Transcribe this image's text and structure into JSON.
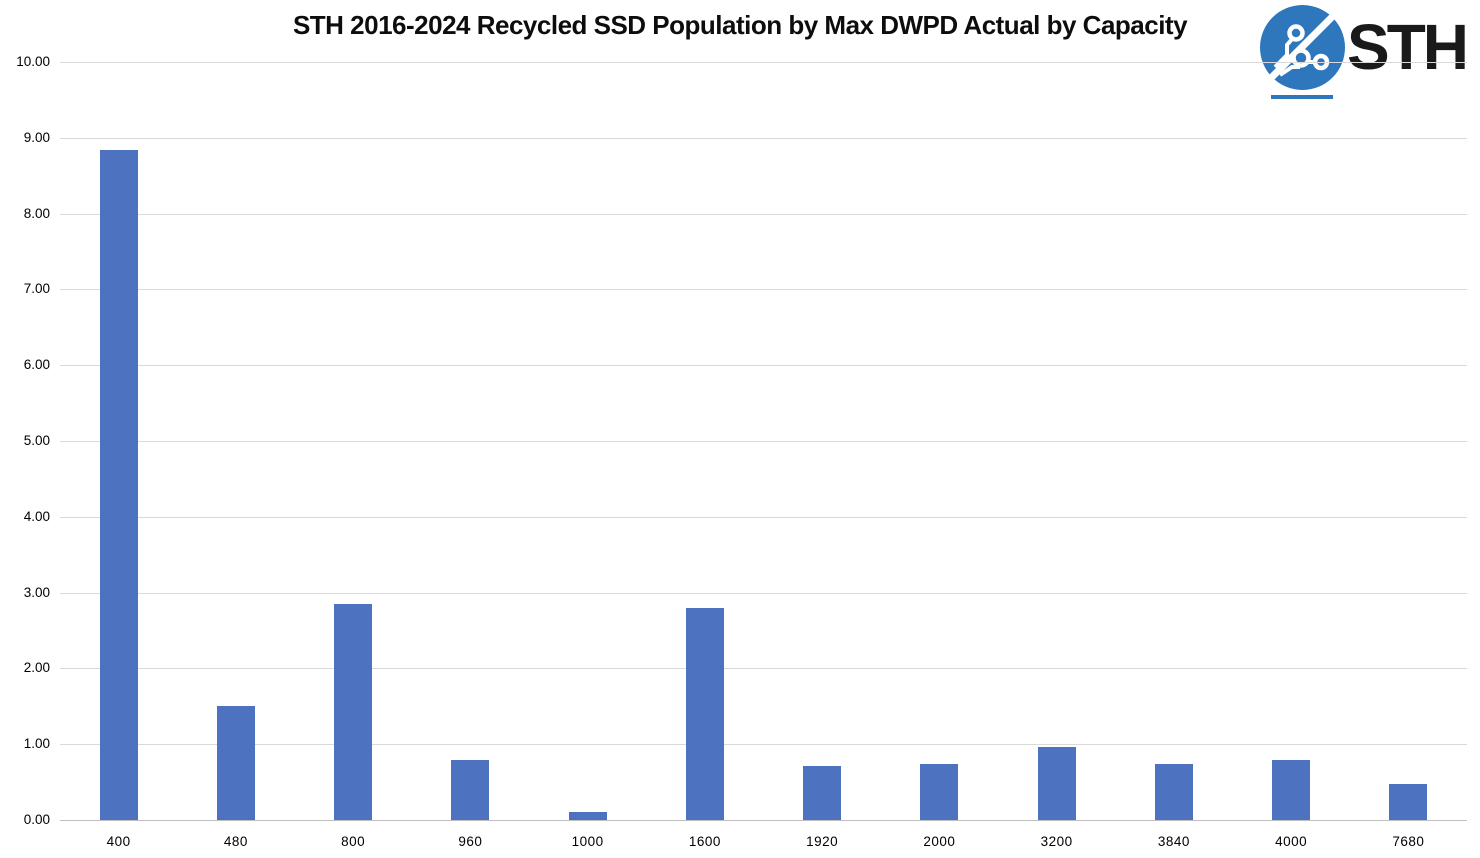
{
  "logo": {
    "text": "STH",
    "icon": "sth-circuit-globe",
    "circle_color": "#2E77BD",
    "text_color": "#1a1a1a"
  },
  "chart_data": {
    "type": "bar",
    "title": "STH 2016-2024 Recycled SSD Population by Max DWPD Actual by Capacity",
    "categories": [
      "400",
      "480",
      "800",
      "960",
      "1000",
      "1600",
      "1920",
      "2000",
      "3200",
      "3840",
      "4000",
      "7680"
    ],
    "values": [
      8.84,
      1.5,
      2.85,
      0.79,
      0.11,
      2.8,
      0.71,
      0.74,
      0.96,
      0.74,
      0.79,
      0.48
    ],
    "xlabel": "",
    "ylabel": "",
    "ylim": [
      0,
      10
    ],
    "ytick_step": 1,
    "ytick_format": "two_decimals",
    "grid": true,
    "legend": "none",
    "bar_color": "#4C72C0",
    "gridline_color": "#D9D9D9",
    "axis_line_color": "#BFBFBF"
  }
}
